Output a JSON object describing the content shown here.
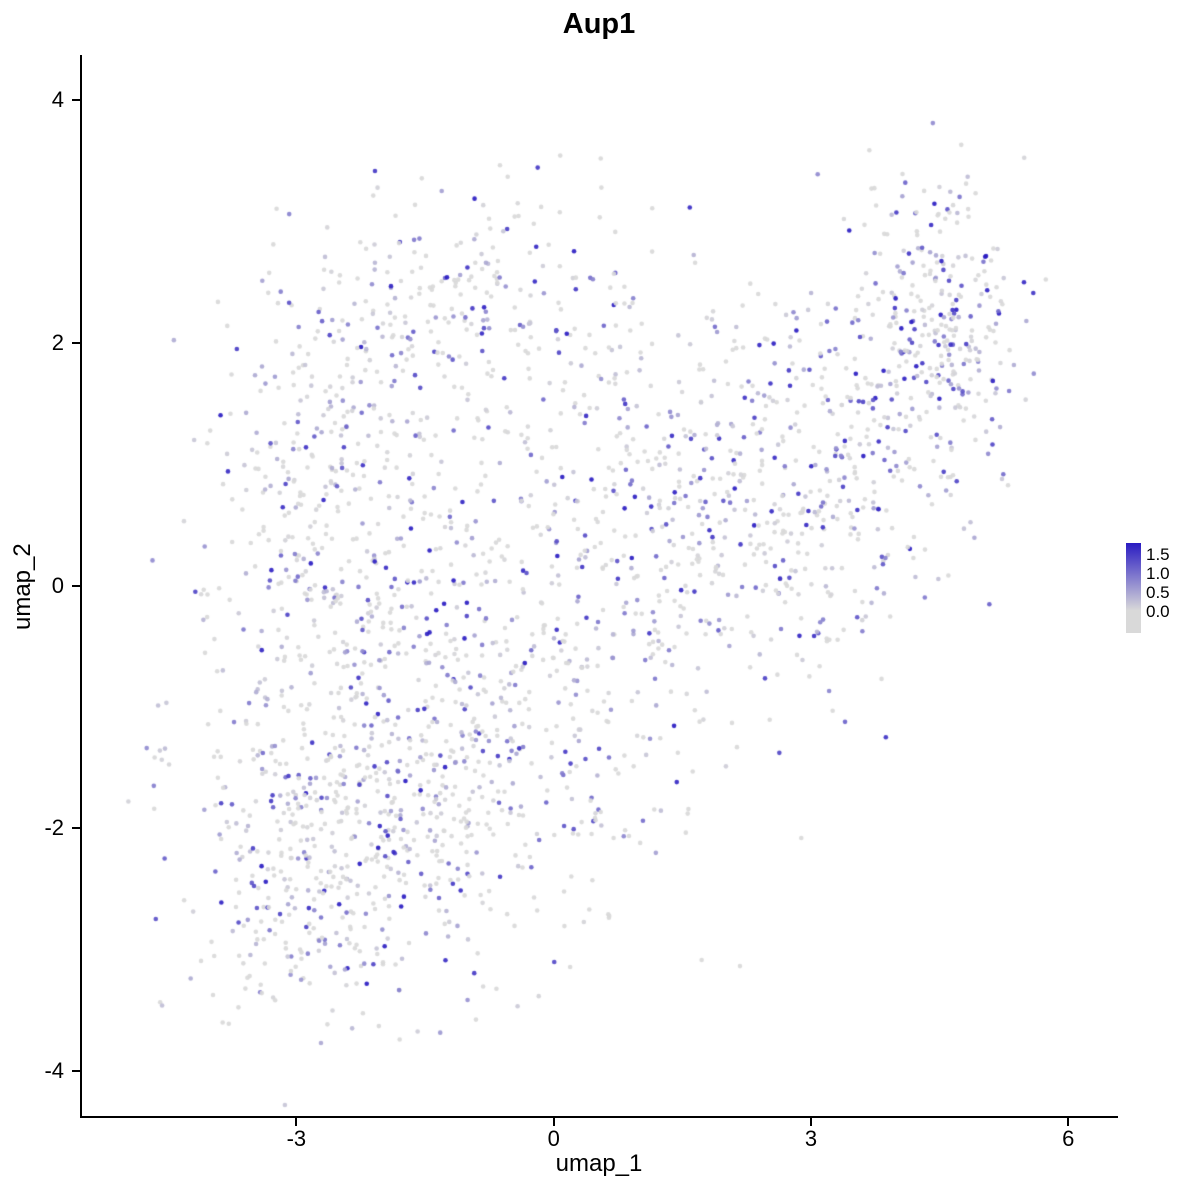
{
  "chart_data": {
    "type": "scatter",
    "title": "Aup1",
    "xlabel": "umap_1",
    "ylabel": "umap_2",
    "x_ticks": [
      "-3",
      "0",
      "3",
      "6"
    ],
    "x_tick_values": [
      -3,
      0,
      3,
      6
    ],
    "y_ticks": [
      "-4",
      "-2",
      "0",
      "2",
      "4"
    ],
    "y_tick_values": [
      -4,
      -2,
      0,
      2,
      4
    ],
    "xlim": [
      -5.5,
      6.58
    ],
    "ylim": [
      -4.37,
      4.37
    ],
    "grid": false,
    "legend": {
      "position": "right",
      "labels": [
        "1.5",
        "1.0",
        "0.5",
        "0.0"
      ],
      "values": [
        1.5,
        1.0,
        0.5,
        0.0
      ],
      "bar_top_value": 1.8,
      "bar_bottom_value": -0.6,
      "color_low": "#d9d9d9",
      "color_high": "#2a1cc2"
    },
    "points": {
      "total": 2589,
      "marker_radius_px": 2.3,
      "seed": 42,
      "value_gray_fraction": 0.45,
      "value_exponent": 2.2,
      "value_max": 1.9,
      "clusters": [
        {
          "cx": -2.7,
          "cy": -2.2,
          "sx": 0.85,
          "sy": 0.7,
          "n": 430
        },
        {
          "cx": -2.6,
          "cy": 0.5,
          "sx": 0.7,
          "sy": 1.05,
          "n": 420
        },
        {
          "cx": -0.9,
          "cy": 2.3,
          "sx": 1.05,
          "sy": 0.45,
          "n": 220
        },
        {
          "cx": -0.1,
          "cy": -0.6,
          "sx": 1.05,
          "sy": 1.1,
          "n": 420
        },
        {
          "cx": -1.3,
          "cy": -1.6,
          "sx": 0.8,
          "sy": 0.8,
          "n": 200
        },
        {
          "cx": 1.3,
          "cy": 0.9,
          "sx": 0.9,
          "sy": 0.85,
          "n": 220
        },
        {
          "cx": 2.7,
          "cy": 0.4,
          "sx": 0.9,
          "sy": 0.8,
          "n": 220
        },
        {
          "cx": 3.8,
          "cy": 1.3,
          "sx": 0.75,
          "sy": 0.75,
          "n": 200,
          "gray": 0.4
        },
        {
          "cx": 4.55,
          "cy": 2.2,
          "sx": 0.5,
          "sy": 0.55,
          "n": 250,
          "gray": 0.32,
          "vscale": 1.1
        },
        {
          "cx": -4.55,
          "cy": -1.35,
          "sx": 0.12,
          "sy": 0.28,
          "n": 9,
          "gray": 0.2
        }
      ]
    }
  }
}
